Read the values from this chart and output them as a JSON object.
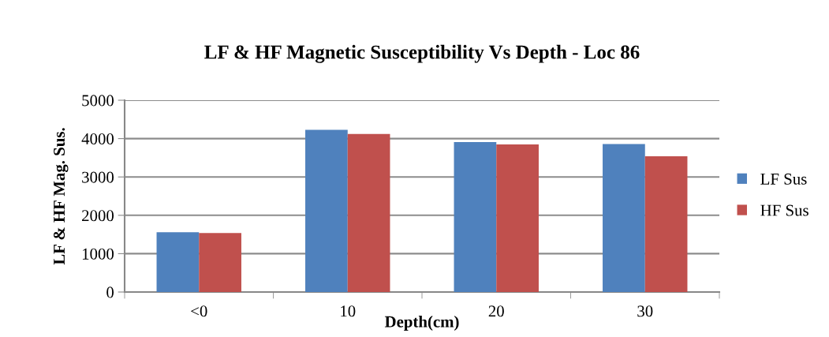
{
  "chart_data": {
    "type": "bar",
    "title": "LF & HF Magnetic Susceptibility Vs Depth - Loc 86",
    "xlabel": "Depth(cm)",
    "ylabel": "LF & HF Mag. Sus.",
    "categories": [
      "<0",
      "10",
      "20",
      "30"
    ],
    "series": [
      {
        "name": "LF Sus",
        "color": "#4f81bd",
        "values": [
          1560,
          4230,
          3910,
          3860
        ]
      },
      {
        "name": "HF Sus",
        "color": "#c0504d",
        "values": [
          1540,
          4120,
          3850,
          3540
        ]
      }
    ],
    "ylim": [
      0,
      5000
    ],
    "yticks": [
      0,
      1000,
      2000,
      3000,
      4000,
      5000
    ],
    "grid": "y",
    "legend": "right"
  }
}
